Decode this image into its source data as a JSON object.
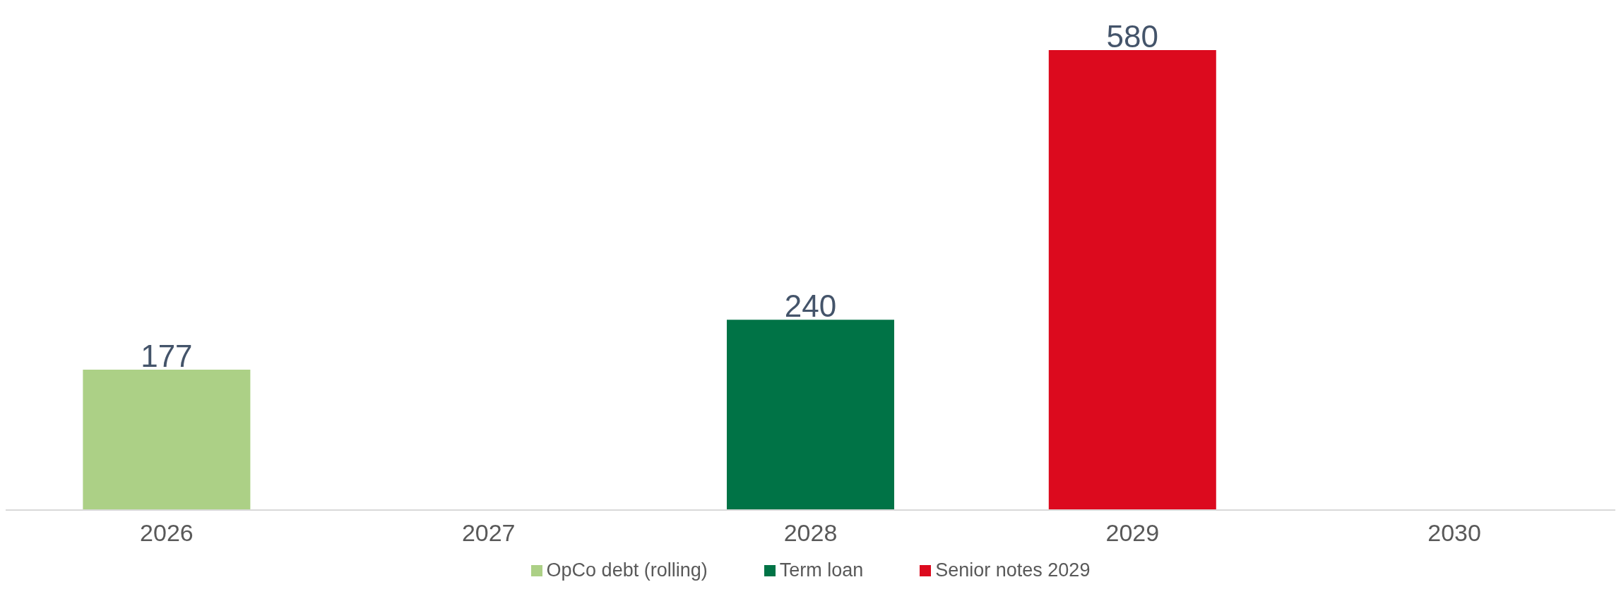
{
  "chart_data": {
    "type": "bar",
    "stacked": true,
    "data_labels": true,
    "legend": "bottom",
    "grid": false,
    "categories": [
      "2026",
      "2027",
      "2028",
      "2029",
      "2030"
    ],
    "series": [
      {
        "name": "OpCo debt (rolling)",
        "color": "#acd086",
        "values": [
          177,
          null,
          null,
          null,
          null
        ]
      },
      {
        "name": "Term loan",
        "color": "#007346",
        "values": [
          null,
          null,
          240,
          null,
          null
        ]
      },
      {
        "name": "Senior notes 2029",
        "color": "#dc0a1e",
        "values": [
          null,
          null,
          null,
          580,
          null
        ]
      }
    ]
  }
}
